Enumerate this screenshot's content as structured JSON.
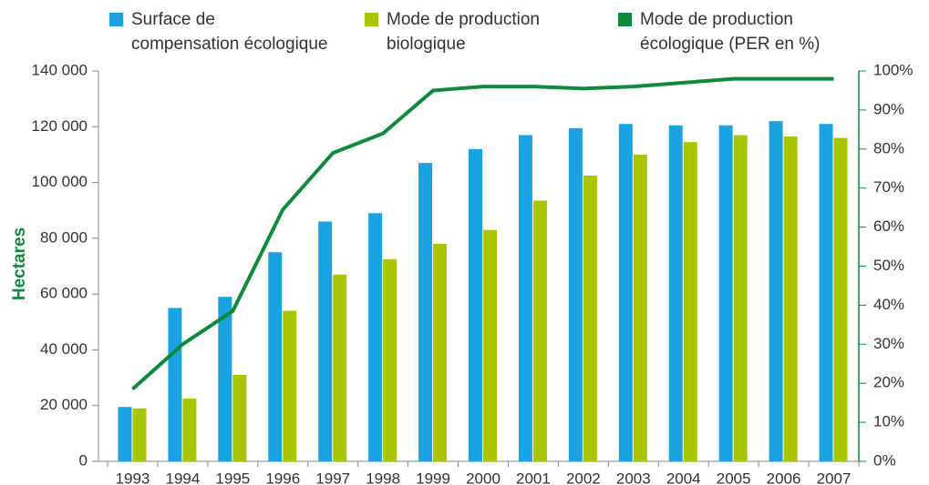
{
  "chart_data": {
    "type": "bar",
    "y_label": "Hectares",
    "categories": [
      "1993",
      "1994",
      "1995",
      "1996",
      "1997",
      "1998",
      "1999",
      "2000",
      "2001",
      "2002",
      "2003",
      "2004",
      "2005",
      "2006",
      "2007"
    ],
    "series": [
      {
        "name": "Surface de\ncompensation écologique",
        "color": "#1ba3e1",
        "type": "bar",
        "values": [
          19500,
          55000,
          59000,
          75000,
          86000,
          89000,
          107000,
          112000,
          117000,
          119500,
          121000,
          120500,
          120500,
          122000,
          121000
        ]
      },
      {
        "name": "Mode de production\nbiologique",
        "color": "#a9c600",
        "type": "bar",
        "values": [
          19000,
          22500,
          31000,
          54000,
          67000,
          72500,
          78000,
          83000,
          93500,
          102500,
          110000,
          114500,
          117000,
          116500,
          116000
        ]
      },
      {
        "name": "Mode de production\nécologique (PER en %)",
        "color": "#0f8a3c",
        "type": "line",
        "axis": "y2",
        "values": [
          18.5,
          30,
          38.5,
          64.5,
          79,
          84,
          95,
          96,
          96,
          95.5,
          96,
          97,
          98,
          98,
          98
        ]
      }
    ],
    "ylim": [
      0,
      140000
    ],
    "yticks": [
      0,
      {
        "value": 20000,
        "label": "20 000"
      },
      {
        "value": 40000,
        "label": "40 000"
      },
      {
        "value": 60000,
        "label": "60 000"
      },
      {
        "value": 80000,
        "label": "80 000"
      },
      {
        "value": 100000,
        "label": "100 000"
      },
      {
        "value": 120000,
        "label": "120 000"
      },
      {
        "value": 140000,
        "label": "140 000"
      }
    ],
    "y2lim": [
      0,
      100
    ],
    "y2ticks": [
      {
        "value": 0,
        "label": "0%"
      },
      {
        "value": 10,
        "label": "10%"
      },
      {
        "value": 20,
        "label": "20%"
      },
      {
        "value": 30,
        "label": "30%"
      },
      {
        "value": 40,
        "label": "40%"
      },
      {
        "value": 50,
        "label": "50%"
      },
      {
        "value": 60,
        "label": "60%"
      },
      {
        "value": 70,
        "label": "70%"
      },
      {
        "value": 80,
        "label": "80%"
      },
      {
        "value": 90,
        "label": "90%"
      },
      {
        "value": 100,
        "label": "100%"
      }
    ],
    "grid": false
  }
}
